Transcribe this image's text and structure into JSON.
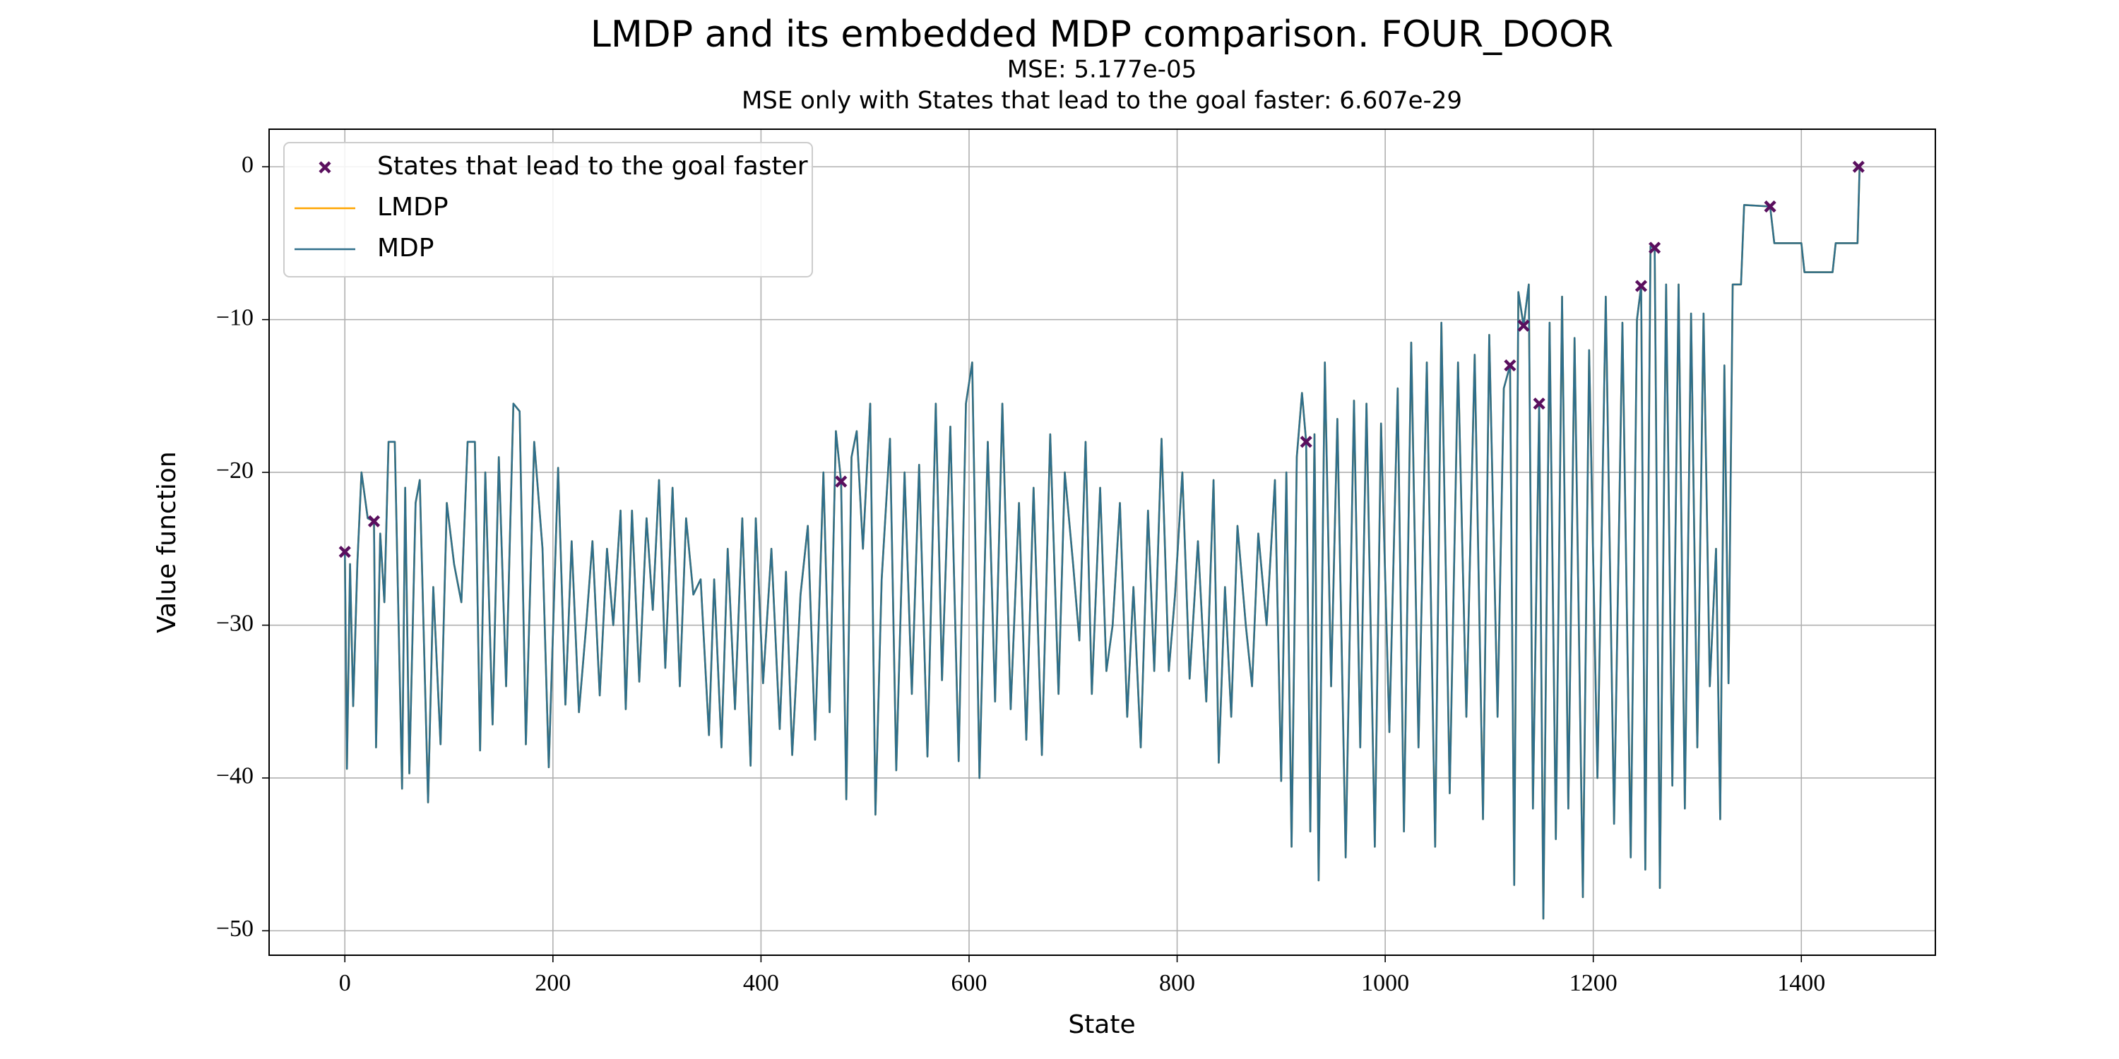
{
  "chart_data": {
    "type": "line",
    "title": "LMDP and its embedded MDP comparison. FOUR_DOOR",
    "subtitles": [
      "MSE: 5.177e-05",
      "MSE only with States that lead to the goal faster: 6.607e-29"
    ],
    "xlabel": "State",
    "ylabel": "Value function",
    "xlim": [
      -72.8,
      1528.8
    ],
    "ylim": [
      -51.6,
      2.46
    ],
    "xticks": [
      0,
      200,
      400,
      600,
      800,
      1000,
      1200,
      1400
    ],
    "yticks": [
      0,
      {
        "value": -10,
        "label": "−10"
      },
      {
        "value": -20,
        "label": "−20"
      },
      {
        "value": -30,
        "label": "−30"
      },
      {
        "value": -40,
        "label": "−40"
      },
      {
        "value": -50,
        "label": "−50"
      }
    ],
    "grid": true,
    "legend": "upper left",
    "x": [
      0,
      2,
      5,
      8,
      12,
      16,
      22,
      28,
      30,
      34,
      38,
      42,
      48,
      55,
      58,
      62,
      68,
      72,
      80,
      85,
      92,
      98,
      105,
      112,
      118,
      125,
      130,
      135,
      142,
      148,
      155,
      162,
      168,
      174,
      182,
      190,
      196,
      205,
      212,
      218,
      225,
      232,
      238,
      245,
      252,
      258,
      265,
      270,
      276,
      283,
      290,
      296,
      302,
      308,
      315,
      322,
      328,
      335,
      342,
      350,
      355,
      362,
      368,
      375,
      382,
      390,
      395,
      402,
      410,
      418,
      424,
      430,
      438,
      445,
      452,
      460,
      466,
      472,
      477,
      482,
      487,
      492,
      498,
      505,
      510,
      516,
      524,
      530,
      538,
      545,
      552,
      560,
      568,
      574,
      582,
      590,
      597,
      603,
      610,
      618,
      625,
      632,
      640,
      648,
      655,
      662,
      670,
      678,
      686,
      692,
      700,
      706,
      712,
      718,
      726,
      732,
      738,
      745,
      752,
      758,
      765,
      772,
      778,
      785,
      792,
      798,
      805,
      812,
      820,
      828,
      835,
      840,
      846,
      852,
      858,
      866,
      872,
      878,
      886,
      894,
      900,
      905,
      910,
      915,
      920,
      924,
      928,
      932,
      936,
      942,
      948,
      954,
      962,
      970,
      976,
      982,
      990,
      996,
      1004,
      1012,
      1018,
      1025,
      1032,
      1040,
      1048,
      1054,
      1062,
      1070,
      1078,
      1086,
      1094,
      1100,
      1108,
      1114,
      1120,
      1124,
      1128,
      1133,
      1138,
      1142,
      1148,
      1152,
      1158,
      1164,
      1170,
      1176,
      1182,
      1190,
      1196,
      1204,
      1212,
      1220,
      1228,
      1236,
      1242,
      1246,
      1250,
      1255,
      1259,
      1264,
      1270,
      1276,
      1282,
      1288,
      1294,
      1300,
      1306,
      1312,
      1318,
      1322,
      1326,
      1330,
      1334,
      1342,
      1345,
      1370,
      1374,
      1400,
      1403,
      1430,
      1433,
      1454,
      1456
    ],
    "series": [
      {
        "name": "States that lead to the goal faster",
        "type": "scatter",
        "color": "#5a0f5e",
        "x": [
          0,
          28,
          477,
          924,
          1120,
          1133,
          1148,
          1246,
          1259,
          1370,
          1455
        ],
        "values": [
          -25.2,
          -23.2,
          -20.6,
          -18,
          -13,
          -10.4,
          -15.5,
          -7.8,
          -5.3,
          -2.6,
          0
        ]
      },
      {
        "name": "LMDP",
        "type": "line",
        "color": "#ffa500",
        "values": [
          -25.2,
          -39.4,
          -26,
          -35.3,
          -26,
          -20,
          -23,
          -23.2,
          -38,
          -24,
          -28.5,
          -18,
          -18,
          -40.7,
          -21,
          -39.7,
          -22,
          -20.5,
          -41.6,
          -27.5,
          -37.8,
          -22,
          -26,
          -28.5,
          -18,
          -18,
          -38.2,
          -20,
          -36.5,
          -19,
          -34,
          -15.5,
          -16,
          -37.8,
          -18,
          -25,
          -39.3,
          -19.7,
          -35.2,
          -24.5,
          -35.7,
          -30,
          -24.5,
          -34.6,
          -25,
          -30,
          -22.5,
          -35.5,
          -22.5,
          -33.7,
          -23,
          -29,
          -20.5,
          -32.8,
          -21,
          -34,
          -23,
          -28,
          -27,
          -37.2,
          -27,
          -38,
          -25,
          -35.5,
          -23,
          -39.2,
          -23,
          -33.8,
          -25,
          -36.8,
          -26.5,
          -38.5,
          -28,
          -23.5,
          -37.5,
          -20,
          -35.7,
          -17.3,
          -20.6,
          -41.4,
          -19,
          -17.3,
          -25,
          -15.5,
          -42.4,
          -27,
          -17.8,
          -39.5,
          -20,
          -34.5,
          -19.5,
          -38.6,
          -15.5,
          -33.6,
          -17,
          -38.9,
          -15.5,
          -12.8,
          -40,
          -18,
          -35,
          -15.5,
          -35.5,
          -22,
          -37.5,
          -21,
          -38.5,
          -17.5,
          -34.5,
          -20,
          -26,
          -31,
          -18,
          -34.5,
          -21,
          -33,
          -30,
          -22,
          -36,
          -27.5,
          -38,
          -22.5,
          -33,
          -17.8,
          -33,
          -28,
          -20,
          -33.5,
          -24.5,
          -35,
          -20.5,
          -39,
          -27.5,
          -36,
          -23.5,
          -30,
          -34,
          -24,
          -30,
          -20.5,
          -40.2,
          -20,
          -44.5,
          -19,
          -14.8,
          -18,
          -43.5,
          -17.5,
          -46.7,
          -12.8,
          -34,
          -16.5,
          -45.2,
          -15.3,
          -38,
          -15.5,
          -44.5,
          -16.8,
          -37,
          -14.5,
          -43.5,
          -11.5,
          -38,
          -12.8,
          -44.5,
          -10.2,
          -41,
          -12.8,
          -36,
          -12.3,
          -42.7,
          -11,
          -36,
          -14.5,
          -13,
          -47,
          -8.2,
          -10.4,
          -7.7,
          -42,
          -15.5,
          -49.2,
          -10.2,
          -44,
          -8.5,
          -42,
          -11.2,
          -47.8,
          -12,
          -40,
          -8.5,
          -43,
          -10.2,
          -45.2,
          -10,
          -7.8,
          -46,
          -5.2,
          -5.3,
          -47.2,
          -7.7,
          -40.5,
          -7.7,
          -42,
          -9.6,
          -38,
          -9.6,
          -34,
          -25,
          -42.7,
          -13,
          -33.8,
          -7.7,
          -7.7,
          -2.5,
          -2.6,
          -5,
          -5,
          -6.9,
          -6.9,
          -5,
          -5,
          0
        ]
      },
      {
        "name": "MDP",
        "type": "line",
        "color": "#2f6f8b",
        "values": [
          -25.2,
          -39.4,
          -26,
          -35.3,
          -26,
          -20,
          -23,
          -23.2,
          -38,
          -24,
          -28.5,
          -18,
          -18,
          -40.7,
          -21,
          -39.7,
          -22,
          -20.5,
          -41.6,
          -27.5,
          -37.8,
          -22,
          -26,
          -28.5,
          -18,
          -18,
          -38.2,
          -20,
          -36.5,
          -19,
          -34,
          -15.5,
          -16,
          -37.8,
          -18,
          -25,
          -39.3,
          -19.7,
          -35.2,
          -24.5,
          -35.7,
          -30,
          -24.5,
          -34.6,
          -25,
          -30,
          -22.5,
          -35.5,
          -22.5,
          -33.7,
          -23,
          -29,
          -20.5,
          -32.8,
          -21,
          -34,
          -23,
          -28,
          -27,
          -37.2,
          -27,
          -38,
          -25,
          -35.5,
          -23,
          -39.2,
          -23,
          -33.8,
          -25,
          -36.8,
          -26.5,
          -38.5,
          -28,
          -23.5,
          -37.5,
          -20,
          -35.7,
          -17.3,
          -20.6,
          -41.4,
          -19,
          -17.3,
          -25,
          -15.5,
          -42.4,
          -27,
          -17.8,
          -39.5,
          -20,
          -34.5,
          -19.5,
          -38.6,
          -15.5,
          -33.6,
          -17,
          -38.9,
          -15.5,
          -12.8,
          -40,
          -18,
          -35,
          -15.5,
          -35.5,
          -22,
          -37.5,
          -21,
          -38.5,
          -17.5,
          -34.5,
          -20,
          -26,
          -31,
          -18,
          -34.5,
          -21,
          -33,
          -30,
          -22,
          -36,
          -27.5,
          -38,
          -22.5,
          -33,
          -17.8,
          -33,
          -28,
          -20,
          -33.5,
          -24.5,
          -35,
          -20.5,
          -39,
          -27.5,
          -36,
          -23.5,
          -30,
          -34,
          -24,
          -30,
          -20.5,
          -40.2,
          -20,
          -44.5,
          -19,
          -14.8,
          -18,
          -43.5,
          -17.5,
          -46.7,
          -12.8,
          -34,
          -16.5,
          -45.2,
          -15.3,
          -38,
          -15.5,
          -44.5,
          -16.8,
          -37,
          -14.5,
          -43.5,
          -11.5,
          -38,
          -12.8,
          -44.5,
          -10.2,
          -41,
          -12.8,
          -36,
          -12.3,
          -42.7,
          -11,
          -36,
          -14.5,
          -13,
          -47,
          -8.2,
          -10.4,
          -7.7,
          -42,
          -15.5,
          -49.2,
          -10.2,
          -44,
          -8.5,
          -42,
          -11.2,
          -47.8,
          -12,
          -40,
          -8.5,
          -43,
          -10.2,
          -45.2,
          -10,
          -7.8,
          -46,
          -5.2,
          -5.3,
          -47.2,
          -7.7,
          -40.5,
          -7.7,
          -42,
          -9.6,
          -38,
          -9.6,
          -34,
          -25,
          -42.7,
          -13,
          -33.8,
          -7.7,
          -7.7,
          -2.5,
          -2.6,
          -5,
          -5,
          -6.9,
          -6.9,
          -5,
          -5,
          0
        ]
      }
    ]
  }
}
